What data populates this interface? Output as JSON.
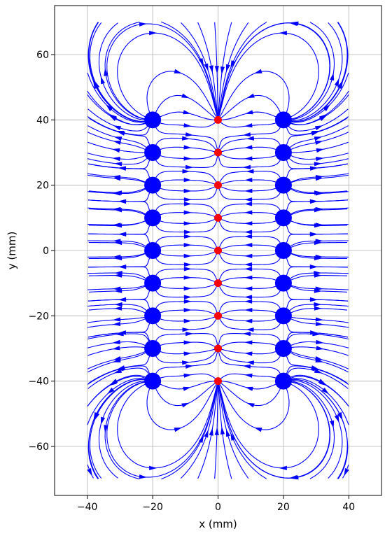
{
  "chart_data": {
    "type": "streamplot",
    "title": "",
    "xlabel": "x (mm)",
    "ylabel": "y (mm)",
    "xlim": [
      -50,
      50
    ],
    "ylim": [
      -75,
      75
    ],
    "xticks": [
      {
        "value": -40,
        "label": "−40"
      },
      {
        "value": -20,
        "label": "−20"
      },
      {
        "value": 0,
        "label": "0"
      },
      {
        "value": 20,
        "label": "20"
      },
      {
        "value": 40,
        "label": "40"
      }
    ],
    "yticks": [
      {
        "value": -60,
        "label": "−60"
      },
      {
        "value": -40,
        "label": "−40"
      },
      {
        "value": -20,
        "label": "−20"
      },
      {
        "value": 0,
        "label": "0"
      },
      {
        "value": 20,
        "label": "20"
      },
      {
        "value": 40,
        "label": "40"
      },
      {
        "value": 60,
        "label": "60"
      }
    ],
    "grid": true,
    "stream_domain": {
      "x": [
        -40,
        40
      ],
      "y": [
        -70,
        70
      ]
    },
    "stream_color": "#0000ff",
    "red_dots": {
      "color": "#ff0000",
      "points": [
        [
          0,
          40
        ],
        [
          0,
          30
        ],
        [
          0,
          20
        ],
        [
          0,
          10
        ],
        [
          0,
          0
        ],
        [
          0,
          -10
        ],
        [
          0,
          -20
        ],
        [
          0,
          -30
        ],
        [
          0,
          -40
        ]
      ]
    },
    "blue_dots": {
      "color": "#0000ff",
      "points": [
        [
          -20,
          40
        ],
        [
          -20,
          30
        ],
        [
          -20,
          20
        ],
        [
          -20,
          10
        ],
        [
          -20,
          0
        ],
        [
          -20,
          -10
        ],
        [
          -20,
          -20
        ],
        [
          -20,
          -30
        ],
        [
          -20,
          -40
        ],
        [
          20,
          40
        ],
        [
          20,
          30
        ],
        [
          20,
          20
        ],
        [
          20,
          10
        ],
        [
          20,
          0
        ],
        [
          20,
          -10
        ],
        [
          20,
          -20
        ],
        [
          20,
          -30
        ],
        [
          20,
          -40
        ]
      ]
    }
  }
}
